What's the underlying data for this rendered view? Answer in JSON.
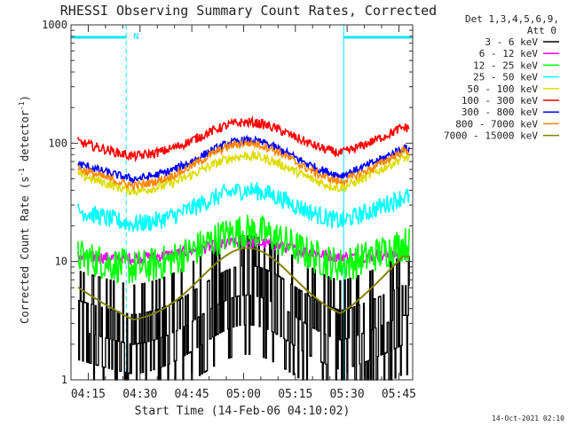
{
  "chart_data": {
    "type": "line",
    "title": "RHESSI Observing Summary Count Rates, Corrected",
    "ylabel": "Corrected Count Rate (s",
    "ylabel_sup1": "-1",
    "ylabel_mid": " detector",
    "ylabel_sup2": "-1",
    "ylabel_end": ")",
    "xlabel": "Start Time (14-Feb-06 04:10:02)",
    "yscale": "log",
    "ylim": [
      1,
      1000
    ],
    "xlim": [
      "04:10",
      "05:49"
    ],
    "xticks": [
      "04:15",
      "04:30",
      "04:45",
      "05:00",
      "05:15",
      "05:30",
      "05:45"
    ],
    "yticks": [
      "1",
      "10",
      "100",
      "1000"
    ],
    "legend_header": [
      "Det 1,3,4,5,6,9,",
      "Att 0"
    ],
    "legend_position": "top-right",
    "series": [
      {
        "name": "3 - 6 keV",
        "color": "#000000",
        "base": 1.9,
        "peak": 5.2,
        "end": 3.5,
        "noise": 0.55,
        "step": true
      },
      {
        "name": "6 - 12 keV",
        "color": "#ff00ff",
        "base": 10.5,
        "peak": 14.5,
        "end": 11.5,
        "noise": 0.05,
        "step": false
      },
      {
        "name": "12 - 25 keV",
        "color": "#00ff00",
        "base": 8.5,
        "peak": 18.0,
        "end": 14.0,
        "noise": 0.15,
        "step": false
      },
      {
        "name": "25 - 50 keV",
        "color": "#00ffff",
        "base": 20.0,
        "peak": 40.0,
        "end": 35.0,
        "noise": 0.08,
        "step": false
      },
      {
        "name": "50 - 100 keV",
        "color": "#dddd00",
        "base": 38.0,
        "peak": 78.0,
        "end": 75.0,
        "noise": 0.04,
        "step": false
      },
      {
        "name": "100 - 300 keV",
        "color": "#ff0000",
        "base": 75.0,
        "peak": 150.0,
        "end": 135.0,
        "noise": 0.04,
        "step": false
      },
      {
        "name": "300 - 800 keV",
        "color": "#0000ff",
        "base": 48.0,
        "peak": 105.0,
        "end": 90.0,
        "noise": 0.035,
        "step": false
      },
      {
        "name": "800 - 7000 keV",
        "color": "#ff8800",
        "base": 42.0,
        "peak": 100.0,
        "end": 85.0,
        "noise": 0.035,
        "step": false
      },
      {
        "name": "7000 - 15000 keV",
        "color": "#808000",
        "base": 3.0,
        "peak": 13.0,
        "end": 11.0,
        "noise": 0.12,
        "step": true
      }
    ],
    "night_intervals": [
      [
        "04:10",
        "04:26"
      ],
      [
        "05:29",
        "05:49"
      ]
    ],
    "saa_marker": "N",
    "grid": false
  },
  "footer_timestamp": "14-Oct-2021 02:10"
}
